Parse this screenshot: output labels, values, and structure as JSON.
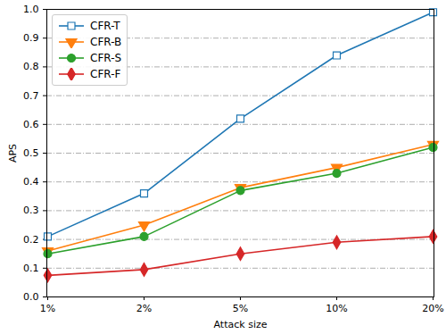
{
  "chart_data": {
    "type": "line",
    "x_label": "Attack size",
    "y_label": "APS",
    "categories": [
      "1%",
      "2%",
      "5%",
      "10%",
      "20%"
    ],
    "series": [
      {
        "name": "CFR-T",
        "color": "#1f77b4",
        "marker": "open_square",
        "values": [
          0.21,
          0.36,
          0.62,
          0.84,
          0.99
        ]
      },
      {
        "name": "CFR-B",
        "color": "#ff7f0e",
        "marker": "triangle_down",
        "values": [
          0.16,
          0.25,
          0.38,
          0.45,
          0.53
        ]
      },
      {
        "name": "CFR-S",
        "color": "#2ca02c",
        "marker": "circle",
        "values": [
          0.15,
          0.21,
          0.37,
          0.43,
          0.52
        ]
      },
      {
        "name": "CFR-F",
        "color": "#d62728",
        "marker": "diamond",
        "values": [
          0.075,
          0.095,
          0.15,
          0.19,
          0.21
        ]
      }
    ],
    "ylim": [
      0,
      1
    ],
    "yticks": [
      {
        "value": 0,
        "label": "0.0"
      },
      0.1,
      0.2,
      0.3,
      0.4,
      0.5,
      0.6,
      0.7,
      0.8,
      0.9,
      {
        "value": 1,
        "label": "1.0"
      }
    ],
    "grid": true,
    "legend": "upper left"
  }
}
